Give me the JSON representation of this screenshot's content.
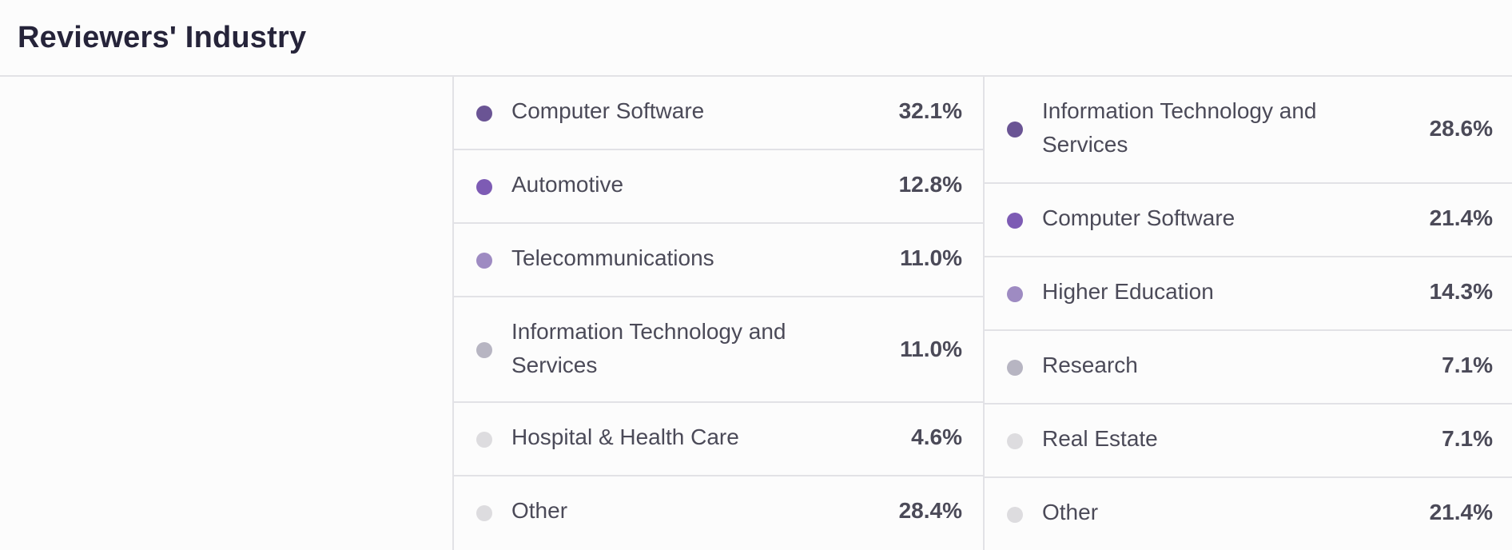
{
  "header": {
    "title": "Reviewers' Industry"
  },
  "colors": {
    "c1": "#6a5494",
    "c2": "#7d5bb4",
    "c3": "#9e8bc2",
    "c4": "#b7b5c2",
    "c5": "#dddcdf",
    "c6": "#dddcdf"
  },
  "column_a": {
    "items": [
      {
        "label": "Computer Software",
        "value": "32.1%",
        "color": "#6a5494"
      },
      {
        "label": "Automotive",
        "value": "12.8%",
        "color": "#7d5bb4"
      },
      {
        "label": "Telecommunications",
        "value": "11.0%",
        "color": "#9e8bc2"
      },
      {
        "label": "Information Technology and Services",
        "value": "11.0%",
        "color": "#b7b5c2"
      },
      {
        "label": "Hospital & Health Care",
        "value": "4.6%",
        "color": "#dddcdf"
      },
      {
        "label": "Other",
        "value": "28.4%",
        "color": "#dddcdf"
      }
    ]
  },
  "column_b": {
    "items": [
      {
        "label": "Information Technology and Services",
        "value": "28.6%",
        "color": "#6a5494"
      },
      {
        "label": "Computer Software",
        "value": "21.4%",
        "color": "#7d5bb4"
      },
      {
        "label": "Higher Education",
        "value": "14.3%",
        "color": "#9e8bc2"
      },
      {
        "label": "Research",
        "value": "7.1%",
        "color": "#b7b5c2"
      },
      {
        "label": "Real Estate",
        "value": "7.1%",
        "color": "#dddcdf"
      },
      {
        "label": "Other",
        "value": "21.4%",
        "color": "#dddcdf"
      }
    ]
  }
}
